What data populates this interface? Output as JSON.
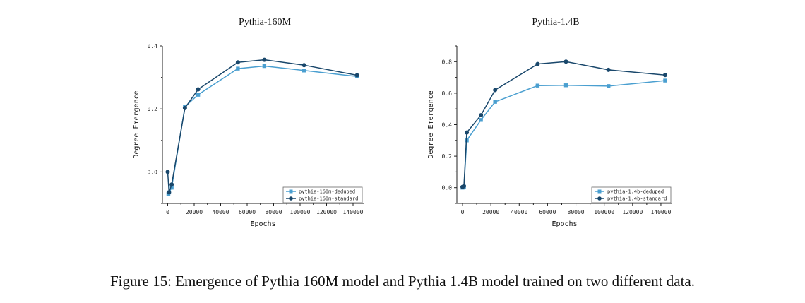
{
  "caption": "Figure 15: Emergence of Pythia 160M model and Pythia 1.4B model trained on two different data.",
  "colors": {
    "deduped": "#4a9fd0",
    "standard": "#19476b"
  },
  "chart_data": [
    {
      "type": "line",
      "title": "Pythia-160M",
      "xlabel": "Epochs",
      "ylabel": "Degree Emergence",
      "xlim": [
        -4000,
        148000
      ],
      "ylim": [
        -0.1,
        0.4
      ],
      "xticks": [
        0,
        20000,
        40000,
        60000,
        80000,
        100000,
        120000,
        140000
      ],
      "xtick_labels": [
        "0",
        "20000",
        "40000",
        "60000",
        "80000",
        "100000",
        "120000",
        "140000"
      ],
      "yticks": [
        0.0,
        0.2,
        0.4
      ],
      "ytick_labels": [
        "0.0",
        "0.2",
        "0.4"
      ],
      "legend_position": "bottom-right",
      "series": [
        {
          "name": "pythia-160m-deduped",
          "marker": "square",
          "color_key": "deduped",
          "x": [
            512,
            1000,
            3000,
            13000,
            23000,
            53000,
            73000,
            103000,
            143000
          ],
          "y": [
            -0.07,
            -0.065,
            -0.05,
            0.207,
            0.245,
            0.328,
            0.336,
            0.322,
            0.303
          ]
        },
        {
          "name": "pythia-160m-standard",
          "marker": "circle",
          "color_key": "standard",
          "x": [
            0,
            1000,
            3000,
            13000,
            23000,
            53000,
            73000,
            103000,
            143000
          ],
          "y": [
            0.0,
            -0.065,
            -0.04,
            0.203,
            0.262,
            0.348,
            0.356,
            0.339,
            0.307
          ]
        }
      ]
    },
    {
      "type": "line",
      "title": "Pythia-1.4B",
      "xlabel": "Epochs",
      "ylabel": "Degree Emergence",
      "xlim": [
        -4000,
        148000
      ],
      "ylim": [
        -0.1,
        0.9
      ],
      "xticks": [
        0,
        20000,
        40000,
        60000,
        80000,
        100000,
        120000,
        140000
      ],
      "xtick_labels": [
        "0",
        "20000",
        "40000",
        "60000",
        "80000",
        "100000",
        "120000",
        "140000"
      ],
      "yticks": [
        0.0,
        0.2,
        0.4,
        0.6,
        0.8
      ],
      "ytick_labels": [
        "0.0",
        "0.2",
        "0.4",
        "0.6",
        "0.8"
      ],
      "legend_position": "bottom-right",
      "series": [
        {
          "name": "pythia-1.4b-deduped",
          "marker": "square",
          "color_key": "deduped",
          "x": [
            0,
            1000,
            3000,
            13000,
            23000,
            53000,
            73000,
            103000,
            143000
          ],
          "y": [
            0.0,
            0.005,
            0.3,
            0.43,
            0.545,
            0.648,
            0.65,
            0.645,
            0.68
          ]
        },
        {
          "name": "pythia-1.4b-standard",
          "marker": "circle",
          "color_key": "standard",
          "x": [
            0,
            1000,
            3000,
            13000,
            23000,
            53000,
            73000,
            103000,
            143000
          ],
          "y": [
            0.005,
            0.01,
            0.35,
            0.46,
            0.62,
            0.785,
            0.8,
            0.748,
            0.715
          ]
        }
      ]
    }
  ]
}
